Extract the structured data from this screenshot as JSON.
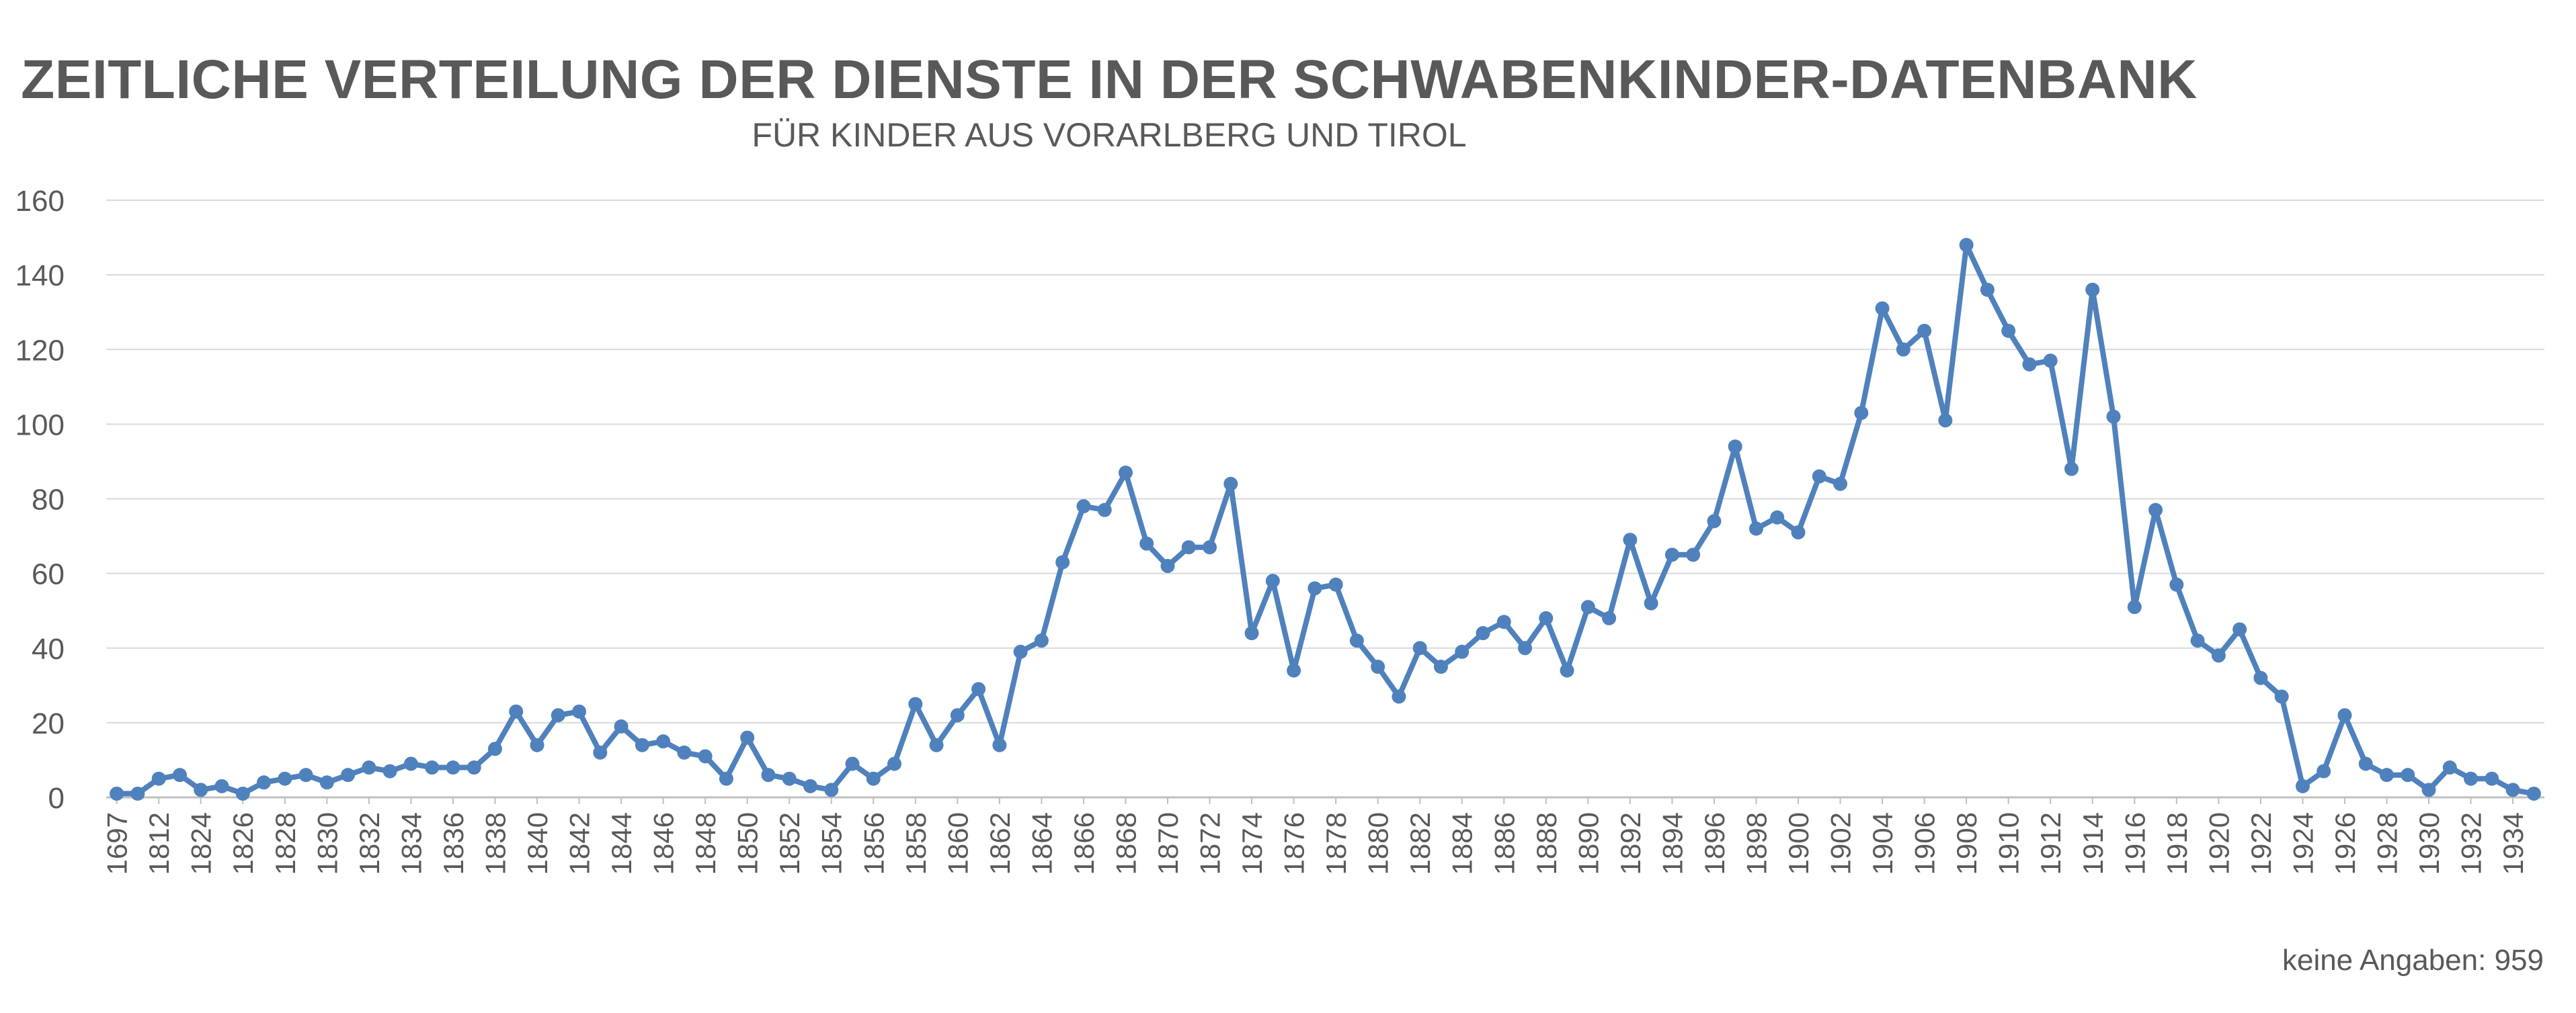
{
  "chart_data": {
    "type": "line",
    "title": "ZEITLICHE VERTEILUNG DER DIENSTE IN DER SCHWABENKINDER-DATENBANK",
    "subtitle": "FÜR KINDER AUS VORARLBERG UND TIROL",
    "xlabel": "",
    "ylabel": "",
    "ylim": [
      0,
      160
    ],
    "yticks": [
      0,
      20,
      40,
      60,
      80,
      100,
      120,
      140,
      160
    ],
    "grid": true,
    "line_color": "#4F81BD",
    "x": [
      "1697",
      "1810",
      "1812",
      "1822",
      "1824",
      "1825",
      "1826",
      "1827",
      "1828",
      "1829",
      "1830",
      "1831",
      "1832",
      "1833",
      "1834",
      "1835",
      "1836",
      "1837",
      "1838",
      "1839",
      "1840",
      "1841",
      "1842",
      "1843",
      "1844",
      "1845",
      "1846",
      "1847",
      "1848",
      "1849",
      "1850",
      "1851",
      "1852",
      "1853",
      "1854",
      "1855",
      "1856",
      "1857",
      "1858",
      "1859",
      "1860",
      "1861",
      "1862",
      "1863",
      "1864",
      "1865",
      "1866",
      "1867",
      "1868",
      "1869",
      "1870",
      "1871",
      "1872",
      "1873",
      "1874",
      "1875",
      "1876",
      "1877",
      "1878",
      "1879",
      "1880",
      "1881",
      "1882",
      "1883",
      "1884",
      "1885",
      "1886",
      "1887",
      "1888",
      "1889",
      "1890",
      "1891",
      "1892",
      "1893",
      "1894",
      "1895",
      "1896",
      "1897",
      "1898",
      "1899",
      "1900",
      "1901",
      "1902",
      "1903",
      "1904",
      "1905",
      "1906",
      "1907",
      "1908",
      "1909",
      "1910",
      "1911",
      "1912",
      "1913",
      "1914",
      "1915",
      "1916",
      "1917",
      "1918",
      "1919",
      "1920",
      "1921",
      "1922",
      "1923",
      "1924",
      "1925",
      "1926",
      "1927",
      "1928",
      "1929",
      "1930",
      "1931",
      "1932",
      "1933",
      "1934",
      "1935"
    ],
    "x_tick_labels": [
      "1697",
      "1812",
      "1824",
      "1826",
      "1828",
      "1830",
      "1832",
      "1834",
      "1836",
      "1838",
      "1840",
      "1842",
      "1844",
      "1846",
      "1848",
      "1850",
      "1852",
      "1854",
      "1856",
      "1858",
      "1860",
      "1862",
      "1864",
      "1866",
      "1868",
      "1870",
      "1872",
      "1874",
      "1876",
      "1878",
      "1880",
      "1882",
      "1884",
      "1886",
      "1888",
      "1890",
      "1892",
      "1894",
      "1896",
      "1898",
      "1900",
      "1902",
      "1904",
      "1906",
      "1908",
      "1910",
      "1912",
      "1914",
      "1916",
      "1918",
      "1920",
      "1922",
      "1924",
      "1926",
      "1928",
      "1930",
      "1932",
      "1934"
    ],
    "series": [
      {
        "values": [
          1,
          1,
          5,
          6,
          2,
          3,
          1,
          4,
          5,
          6,
          4,
          6,
          8,
          7,
          9,
          8,
          8,
          8,
          13,
          23,
          14,
          22,
          23,
          12,
          19,
          14,
          15,
          12,
          11,
          5,
          16,
          6,
          5,
          3,
          2,
          9,
          5,
          9,
          25,
          14,
          22,
          29,
          14,
          39,
          42,
          63,
          78,
          77,
          87,
          68,
          62,
          67,
          67,
          84,
          44,
          58,
          34,
          56,
          57,
          42,
          35,
          27,
          40,
          35,
          39,
          44,
          47,
          40,
          48,
          34,
          51,
          48,
          69,
          52,
          65,
          65,
          74,
          94,
          72,
          75,
          71,
          86,
          84,
          103,
          131,
          120,
          125,
          101,
          148,
          136,
          125,
          116,
          117,
          88,
          136,
          102,
          51,
          77,
          57,
          42,
          38,
          45,
          32,
          27,
          3,
          7,
          22,
          9,
          6,
          6,
          2,
          8,
          5,
          5,
          2,
          1
        ]
      }
    ],
    "note": "keine Angaben: 959"
  }
}
